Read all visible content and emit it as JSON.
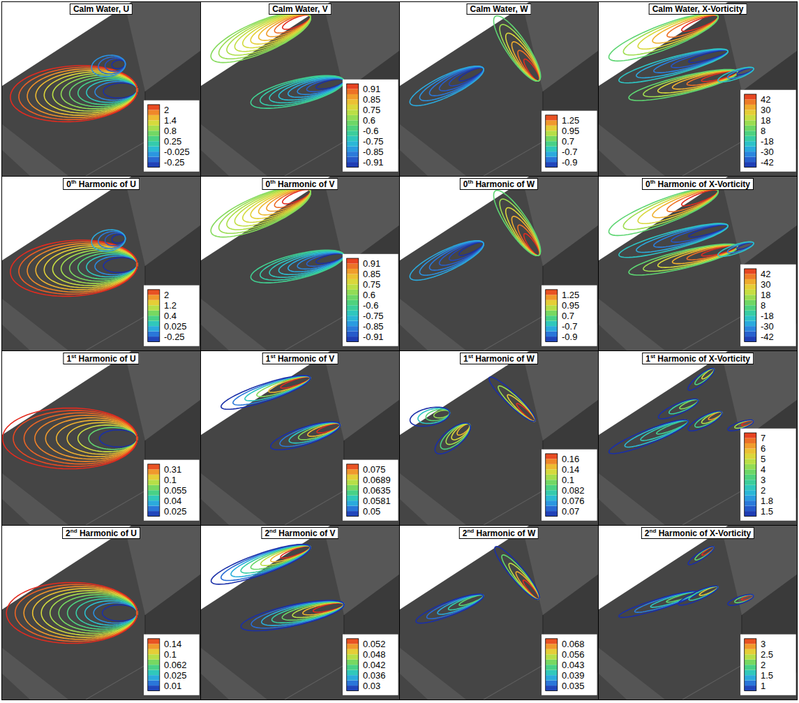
{
  "chart_data": {
    "type": "contour",
    "panels": [
      {
        "title": "Calm Water, U",
        "colorbar": {
          "ticks": [
            2,
            1.4,
            0.8,
            0.25,
            -0.025,
            -0.25
          ]
        },
        "contours": [
          {
            "from": [
              0.04,
              0.45
            ],
            "to": [
              0.68,
              0.5
            ],
            "width": 0.32,
            "levels": 12,
            "edge": 2,
            "core": -0.25
          },
          {
            "from": [
              0.45,
              0.62
            ],
            "to": [
              0.62,
              0.65
            ],
            "width": 0.12,
            "levels": 4,
            "edge": -0.025,
            "core": -0.25
          }
        ]
      },
      {
        "title": "Calm Water, V",
        "colorbar": {
          "ticks": [
            0.91,
            0.85,
            0.75,
            0.6,
            -0.6,
            -0.75,
            -0.85,
            -0.91
          ]
        },
        "contours": [
          {
            "from": [
              0.05,
              0.68
            ],
            "to": [
              0.55,
              0.92
            ],
            "width": 0.18,
            "levels": 10,
            "edge": 0.6,
            "core": 0.91
          },
          {
            "from": [
              0.25,
              0.42
            ],
            "to": [
              0.72,
              0.55
            ],
            "width": 0.14,
            "levels": 8,
            "edge": -0.6,
            "core": -0.91
          }
        ]
      },
      {
        "title": "Calm Water, W",
        "colorbar": {
          "ticks": [
            1.25,
            0.95,
            0.7,
            -0.7,
            -0.9
          ]
        },
        "contours": [
          {
            "from": [
              0.05,
              0.42
            ],
            "to": [
              0.42,
              0.62
            ],
            "width": 0.12,
            "levels": 6,
            "edge": -0.7,
            "core": -0.9
          },
          {
            "from": [
              0.48,
              0.92
            ],
            "to": [
              0.7,
              0.55
            ],
            "width": 0.12,
            "levels": 6,
            "edge": 0.7,
            "core": 1.25
          }
        ]
      },
      {
        "title": "Calm Water, X-Vorticity",
        "colorbar": {
          "ticks": [
            42,
            30,
            18,
            8,
            -18,
            -30,
            -42
          ]
        },
        "contours": [
          {
            "from": [
              0.05,
              0.68
            ],
            "to": [
              0.6,
              0.92
            ],
            "width": 0.14,
            "levels": 6,
            "edge": 8,
            "core": 42
          },
          {
            "from": [
              0.1,
              0.55
            ],
            "to": [
              0.65,
              0.72
            ],
            "width": 0.1,
            "levels": 5,
            "edge": -18,
            "core": -42
          },
          {
            "from": [
              0.15,
              0.45
            ],
            "to": [
              0.7,
              0.6
            ],
            "width": 0.1,
            "levels": 6,
            "edge": 8,
            "core": 42
          },
          {
            "from": [
              0.6,
              0.55
            ],
            "to": [
              0.78,
              0.62
            ],
            "width": 0.05,
            "levels": 3,
            "edge": -18,
            "core": -42
          }
        ]
      },
      {
        "title": "0th Harmonic of U",
        "colorbar": {
          "ticks": [
            2,
            1.2,
            0.4,
            0.025,
            -0.25
          ]
        },
        "contours": [
          {
            "from": [
              0.04,
              0.45
            ],
            "to": [
              0.68,
              0.5
            ],
            "width": 0.32,
            "levels": 12,
            "edge": 2,
            "core": -0.25
          },
          {
            "from": [
              0.45,
              0.62
            ],
            "to": [
              0.62,
              0.65
            ],
            "width": 0.12,
            "levels": 4,
            "edge": 0.025,
            "core": -0.25
          }
        ]
      },
      {
        "title": "0th Harmonic of V",
        "colorbar": {
          "ticks": [
            0.91,
            0.85,
            0.75,
            0.6,
            -0.6,
            -0.75,
            -0.85,
            -0.91
          ]
        },
        "contours": [
          {
            "from": [
              0.05,
              0.68
            ],
            "to": [
              0.55,
              0.92
            ],
            "width": 0.18,
            "levels": 10,
            "edge": 0.6,
            "core": 0.91
          },
          {
            "from": [
              0.25,
              0.42
            ],
            "to": [
              0.72,
              0.55
            ],
            "width": 0.14,
            "levels": 8,
            "edge": -0.6,
            "core": -0.91
          }
        ]
      },
      {
        "title": "0th Harmonic of W",
        "colorbar": {
          "ticks": [
            1.25,
            0.95,
            0.7,
            -0.7,
            -0.9
          ]
        },
        "contours": [
          {
            "from": [
              0.05,
              0.42
            ],
            "to": [
              0.42,
              0.62
            ],
            "width": 0.12,
            "levels": 6,
            "edge": -0.7,
            "core": -0.9
          },
          {
            "from": [
              0.48,
              0.92
            ],
            "to": [
              0.7,
              0.55
            ],
            "width": 0.12,
            "levels": 6,
            "edge": 0.7,
            "core": 1.25
          }
        ]
      },
      {
        "title": "0th Harmonic of X-Vorticity",
        "colorbar": {
          "ticks": [
            42,
            30,
            18,
            8,
            -18,
            -30,
            -42
          ]
        },
        "contours": [
          {
            "from": [
              0.05,
              0.68
            ],
            "to": [
              0.6,
              0.92
            ],
            "width": 0.14,
            "levels": 6,
            "edge": 8,
            "core": 42
          },
          {
            "from": [
              0.1,
              0.55
            ],
            "to": [
              0.65,
              0.72
            ],
            "width": 0.1,
            "levels": 5,
            "edge": -18,
            "core": -42
          },
          {
            "from": [
              0.15,
              0.45
            ],
            "to": [
              0.7,
              0.6
            ],
            "width": 0.1,
            "levels": 6,
            "edge": 8,
            "core": 42
          },
          {
            "from": [
              0.6,
              0.55
            ],
            "to": [
              0.78,
              0.62
            ],
            "width": 0.05,
            "levels": 3,
            "edge": -18,
            "core": -42
          }
        ]
      },
      {
        "title": "1st Harmonic of U",
        "colorbar": {
          "ticks": [
            0.31,
            0.1,
            0.055,
            0.04,
            0.025
          ]
        },
        "contours": [
          {
            "from": [
              0.0,
              0.5
            ],
            "to": [
              0.68,
              0.5
            ],
            "width": 0.35,
            "levels": 10,
            "edge": 0.31,
            "core": 0.025
          }
        ]
      },
      {
        "title": "1st Harmonic of V",
        "colorbar": {
          "ticks": [
            0.075,
            0.0689,
            0.0635,
            0.0581,
            0.05
          ]
        },
        "contours": [
          {
            "from": [
              0.1,
              0.68
            ],
            "to": [
              0.55,
              0.85
            ],
            "width": 0.1,
            "levels": 6,
            "edge": 0.05,
            "core": 0.075
          },
          {
            "from": [
              0.35,
              0.45
            ],
            "to": [
              0.7,
              0.58
            ],
            "width": 0.1,
            "levels": 6,
            "edge": 0.05,
            "core": 0.075
          }
        ]
      },
      {
        "title": "1st Harmonic of W",
        "colorbar": {
          "ticks": [
            0.16,
            0.14,
            0.1,
            0.082,
            0.076,
            0.07
          ]
        },
        "contours": [
          {
            "from": [
              0.05,
              0.6
            ],
            "to": [
              0.25,
              0.65
            ],
            "width": 0.1,
            "levels": 4,
            "edge": 0.07,
            "core": 0.1
          },
          {
            "from": [
              0.18,
              0.42
            ],
            "to": [
              0.35,
              0.58
            ],
            "width": 0.1,
            "levels": 5,
            "edge": 0.07,
            "core": 0.14
          },
          {
            "from": [
              0.45,
              0.85
            ],
            "to": [
              0.68,
              0.6
            ],
            "width": 0.07,
            "levels": 4,
            "edge": 0.07,
            "core": 0.16
          }
        ]
      },
      {
        "title": "1st Harmonic of X-Vorticity",
        "colorbar": {
          "ticks": [
            7,
            6,
            5,
            4,
            3,
            2,
            1.8,
            1.5
          ]
        },
        "contours": [
          {
            "from": [
              0.05,
              0.42
            ],
            "to": [
              0.45,
              0.6
            ],
            "width": 0.08,
            "levels": 4,
            "edge": 1.5,
            "core": 3
          },
          {
            "from": [
              0.3,
              0.62
            ],
            "to": [
              0.5,
              0.72
            ],
            "width": 0.06,
            "levels": 3,
            "edge": 1.5,
            "core": 4
          },
          {
            "from": [
              0.45,
              0.55
            ],
            "to": [
              0.62,
              0.65
            ],
            "width": 0.06,
            "levels": 4,
            "edge": 1.5,
            "core": 6
          },
          {
            "from": [
              0.45,
              0.78
            ],
            "to": [
              0.58,
              0.9
            ],
            "width": 0.05,
            "levels": 3,
            "edge": 1.5,
            "core": 5
          },
          {
            "from": [
              0.65,
              0.55
            ],
            "to": [
              0.78,
              0.6
            ],
            "width": 0.04,
            "levels": 3,
            "edge": 1.5,
            "core": 7
          }
        ]
      },
      {
        "title": "2nd Harmonic of U",
        "colorbar": {
          "ticks": [
            0.14,
            0.1,
            0.062,
            0.025,
            0.01
          ]
        },
        "contours": [
          {
            "from": [
              0.02,
              0.5
            ],
            "to": [
              0.68,
              0.5
            ],
            "width": 0.35,
            "levels": 12,
            "edge": 0.14,
            "core": 0.01
          }
        ]
      },
      {
        "title": "2nd Harmonic of V",
        "colorbar": {
          "ticks": [
            0.052,
            0.048,
            0.042,
            0.036,
            0.03
          ]
        },
        "contours": [
          {
            "from": [
              0.05,
              0.68
            ],
            "to": [
              0.55,
              0.88
            ],
            "width": 0.12,
            "levels": 8,
            "edge": 0.03,
            "core": 0.052
          },
          {
            "from": [
              0.2,
              0.42
            ],
            "to": [
              0.72,
              0.55
            ],
            "width": 0.12,
            "levels": 8,
            "edge": 0.03,
            "core": 0.052
          }
        ]
      },
      {
        "title": "2nd Harmonic of W",
        "colorbar": {
          "ticks": [
            0.068,
            0.056,
            0.043,
            0.039,
            0.035
          ]
        },
        "contours": [
          {
            "from": [
              0.08,
              0.45
            ],
            "to": [
              0.42,
              0.6
            ],
            "width": 0.08,
            "levels": 5,
            "edge": 0.035,
            "core": 0.043
          },
          {
            "from": [
              0.48,
              0.88
            ],
            "to": [
              0.7,
              0.58
            ],
            "width": 0.08,
            "levels": 5,
            "edge": 0.035,
            "core": 0.068
          }
        ]
      },
      {
        "title": "2nd Harmonic of X-Vorticity",
        "colorbar": {
          "ticks": [
            3,
            2.5,
            2,
            1.5,
            1
          ]
        },
        "contours": [
          {
            "from": [
              0.1,
              0.48
            ],
            "to": [
              0.5,
              0.62
            ],
            "width": 0.06,
            "levels": 4,
            "edge": 1,
            "core": 2
          },
          {
            "from": [
              0.4,
              0.55
            ],
            "to": [
              0.6,
              0.65
            ],
            "width": 0.05,
            "levels": 3,
            "edge": 1,
            "core": 2.5
          },
          {
            "from": [
              0.45,
              0.78
            ],
            "to": [
              0.58,
              0.88
            ],
            "width": 0.04,
            "levels": 3,
            "edge": 1,
            "core": 3
          },
          {
            "from": [
              0.65,
              0.55
            ],
            "to": [
              0.78,
              0.6
            ],
            "width": 0.04,
            "levels": 3,
            "edge": 1,
            "core": 3
          }
        ]
      }
    ]
  }
}
